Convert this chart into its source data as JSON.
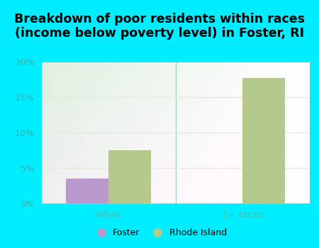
{
  "title": "Breakdown of poor residents within races\n(income below poverty level) in Foster, RI",
  "categories": [
    "White",
    "2+ races"
  ],
  "foster_values": [
    3.5,
    0.0
  ],
  "ri_values": [
    7.5,
    17.7
  ],
  "foster_color": "#bb99cc",
  "ri_color": "#b5c98a",
  "background_color": "#00eeff",
  "plot_bg_left": "#d0ecd8",
  "plot_bg_right": "#f0f8f0",
  "ylim": [
    0,
    20
  ],
  "yticks": [
    0,
    5,
    10,
    15,
    20
  ],
  "ytick_labels": [
    "0%",
    "5%",
    "10%",
    "15%",
    "20%"
  ],
  "tick_color": "#44aa99",
  "xlabel_color": "#55bbaa",
  "bar_width": 0.32,
  "title_fontsize": 12.5,
  "legend_foster": "Foster",
  "legend_ri": "Rhode Island",
  "legend_fontsize": 9,
  "grid_color": "#ddeedc",
  "spine_color": "#99ccaa"
}
